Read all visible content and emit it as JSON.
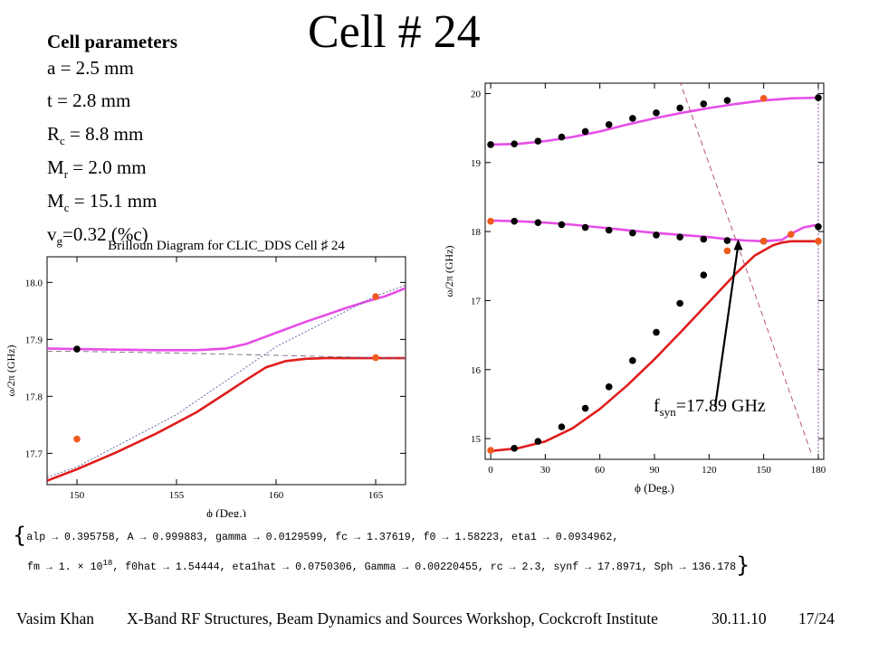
{
  "slide": {
    "title": "Cell # 24",
    "params_heading": "Cell parameters",
    "params": [
      {
        "sym": "a",
        "sub": "",
        "rest": " = 2.5 mm"
      },
      {
        "sym": "t",
        "sub": "",
        "rest": " = 2.8 mm"
      },
      {
        "sym": "R",
        "sub": "c",
        "rest": " = 8.8 mm"
      },
      {
        "sym": "M",
        "sub": "r",
        "rest": " = 2.0 mm"
      },
      {
        "sym": "M",
        "sub": "c",
        "rest": " = 15.1 mm"
      },
      {
        "sym": "v",
        "sub": "g",
        "rest": "=0.32 (%c)"
      }
    ],
    "annotation": {
      "pre": "f",
      "sub": "syn",
      "post": "=17.89 GHz"
    },
    "fit_line1": "alp → 0.395758, A → 0.999883, gamma → 0.0129599, fc → 1.37619, f0 → 1.58223, eta1 → 0.0934962,",
    "fit_line2": "fm → 1. × 10",
    "fit_line2_exp": "18",
    "fit_line2_rest": ", f0hat → 1.54444, eta1hat → 0.0750306, Gamma → 0.00220455, rc → 2.3, synf → 17.8971, Sph → 136.178",
    "brace_open": "{",
    "brace_close": "}",
    "footer": {
      "author": "Vasim Khan",
      "workshop": "X-Band RF Structures, Beam Dynamics and Sources Workshop, Cockcroft Institute",
      "date": "30.11.10",
      "page": "17/24"
    },
    "colors": {
      "magenta": "#e64ee6",
      "red": "#e01d1d",
      "orange_dot": "#f05a1e",
      "black_dot": "#000000",
      "dashed": "#7a3e8c"
    }
  },
  "chart_data": [
    {
      "type": "line",
      "title": "Brilloun Diagram for CLIC_DDS Cell ♯ 24",
      "xlabel": "ϕ (Deg.)",
      "ylabel": "ω/2π (GHz)",
      "xlim": [
        148.5,
        166.5
      ],
      "ylim": [
        17.645,
        18.045
      ],
      "xticks": [
        150,
        155,
        160,
        165
      ],
      "yticks": [
        17.7,
        17.8,
        17.9,
        18.0
      ],
      "series": [
        {
          "color": "#e64ee6",
          "style": "solid",
          "points": [
            [
              148.5,
              17.884
            ],
            [
              150,
              17.883
            ],
            [
              152,
              17.882
            ],
            [
              154,
              17.881
            ],
            [
              156,
              17.881
            ],
            [
              157.5,
              17.884
            ],
            [
              158.5,
              17.892
            ],
            [
              159.5,
              17.905
            ],
            [
              160.5,
              17.918
            ],
            [
              161.5,
              17.931
            ],
            [
              162.5,
              17.943
            ],
            [
              163.5,
              17.955
            ],
            [
              164.5,
              17.966
            ],
            [
              165.5,
              17.976
            ],
            [
              166.5,
              17.99
            ]
          ]
        },
        {
          "color": "#e01d1d",
          "style": "solid",
          "points": [
            [
              148.5,
              17.652
            ],
            [
              150,
              17.672
            ],
            [
              152,
              17.702
            ],
            [
              154,
              17.735
            ],
            [
              156,
              17.772
            ],
            [
              157.5,
              17.806
            ],
            [
              158.5,
              17.829
            ],
            [
              159.5,
              17.851
            ],
            [
              160.5,
              17.862
            ],
            [
              161.5,
              17.866
            ],
            [
              162.5,
              17.867
            ],
            [
              164,
              17.867
            ],
            [
              166.5,
              17.867
            ]
          ]
        },
        {
          "color": "#5a5aa0",
          "style": "dotted",
          "points": [
            [
              148.5,
              17.658
            ],
            [
              150,
              17.676
            ],
            [
              155,
              17.768
            ],
            [
              160,
              17.887
            ],
            [
              165,
              17.976
            ],
            [
              166.5,
              17.995
            ]
          ]
        },
        {
          "color": "#7a6a8a",
          "style": "dashed",
          "points": [
            [
              148.5,
              17.879
            ],
            [
              150,
              17.879
            ],
            [
              155,
              17.876
            ],
            [
              160,
              17.872
            ],
            [
              165,
              17.868
            ],
            [
              166.5,
              17.867
            ]
          ]
        }
      ],
      "markers": [
        {
          "x": 150,
          "y": 17.883,
          "color": "#000000"
        },
        {
          "x": 150,
          "y": 17.725,
          "color": "#f05a1e"
        },
        {
          "x": 165,
          "y": 17.975,
          "color": "#f05a1e"
        },
        {
          "x": 165,
          "y": 17.868,
          "color": "#f05a1e"
        }
      ]
    },
    {
      "type": "line",
      "xlabel": "ϕ (Deg.)",
      "ylabel": "ω/2π (GHz)",
      "xlim": [
        -3,
        183
      ],
      "ylim": [
        14.7,
        20.15
      ],
      "xticks": [
        0,
        30,
        60,
        90,
        120,
        150,
        180
      ],
      "yticks": [
        15,
        16,
        17,
        18,
        19,
        20
      ],
      "series": [
        {
          "color": "#e64ee6",
          "style": "solid",
          "points": [
            [
              0,
              19.26
            ],
            [
              15,
              19.27
            ],
            [
              30,
              19.31
            ],
            [
              45,
              19.37
            ],
            [
              60,
              19.45
            ],
            [
              75,
              19.55
            ],
            [
              90,
              19.64
            ],
            [
              105,
              19.72
            ],
            [
              120,
              19.79
            ],
            [
              135,
              19.85
            ],
            [
              150,
              19.9
            ],
            [
              165,
              19.93
            ],
            [
              180,
              19.94
            ]
          ]
        },
        {
          "color": "#e64ee6",
          "style": "solid",
          "points": [
            [
              0,
              18.16
            ],
            [
              15,
              18.15
            ],
            [
              30,
              18.13
            ],
            [
              45,
              18.1
            ],
            [
              60,
              18.06
            ],
            [
              75,
              18.02
            ],
            [
              90,
              17.98
            ],
            [
              105,
              17.95
            ],
            [
              120,
              17.92
            ],
            [
              130,
              17.89
            ],
            [
              140,
              17.87
            ],
            [
              150,
              17.86
            ],
            [
              160,
              17.88
            ],
            [
              166,
              17.98
            ],
            [
              172,
              18.06
            ],
            [
              178,
              18.09
            ],
            [
              180,
              18.08
            ]
          ]
        },
        {
          "color": "#e01d1d",
          "style": "solid",
          "points": [
            [
              0,
              14.82
            ],
            [
              15,
              14.86
            ],
            [
              30,
              14.96
            ],
            [
              45,
              15.15
            ],
            [
              60,
              15.43
            ],
            [
              75,
              15.77
            ],
            [
              90,
              16.15
            ],
            [
              105,
              16.56
            ],
            [
              120,
              16.98
            ],
            [
              135,
              17.4
            ],
            [
              145,
              17.65
            ],
            [
              155,
              17.8
            ],
            [
              160,
              17.84
            ],
            [
              165,
              17.86
            ],
            [
              170,
              17.86
            ],
            [
              180,
              17.86
            ]
          ]
        },
        {
          "color": "#b0407a",
          "style": "dashed",
          "points": [
            [
              176,
              14.8
            ],
            [
              103,
              20.25
            ]
          ]
        },
        {
          "color": "#7a3e8c",
          "style": "dotted",
          "points": [
            [
              180,
              14.8
            ],
            [
              180,
              20.25
            ]
          ]
        }
      ],
      "markers": [
        {
          "x": 0,
          "y": 19.26,
          "color": "#000000"
        },
        {
          "x": 13,
          "y": 19.27,
          "color": "#000000"
        },
        {
          "x": 26,
          "y": 19.31,
          "color": "#000000"
        },
        {
          "x": 39,
          "y": 19.37,
          "color": "#000000"
        },
        {
          "x": 52,
          "y": 19.45,
          "color": "#000000"
        },
        {
          "x": 65,
          "y": 19.55,
          "color": "#000000"
        },
        {
          "x": 78,
          "y": 19.64,
          "color": "#000000"
        },
        {
          "x": 91,
          "y": 19.72,
          "color": "#000000"
        },
        {
          "x": 104,
          "y": 19.79,
          "color": "#000000"
        },
        {
          "x": 117,
          "y": 19.85,
          "color": "#000000"
        },
        {
          "x": 130,
          "y": 19.9,
          "color": "#000000"
        },
        {
          "x": 150,
          "y": 19.93,
          "color": "#f05a1e"
        },
        {
          "x": 180,
          "y": 19.94,
          "color": "#000000"
        },
        {
          "x": 0,
          "y": 18.15,
          "color": "#f05a1e"
        },
        {
          "x": 13,
          "y": 18.15,
          "color": "#000000"
        },
        {
          "x": 26,
          "y": 18.13,
          "color": "#000000"
        },
        {
          "x": 39,
          "y": 18.1,
          "color": "#000000"
        },
        {
          "x": 52,
          "y": 18.06,
          "color": "#000000"
        },
        {
          "x": 65,
          "y": 18.02,
          "color": "#000000"
        },
        {
          "x": 78,
          "y": 17.98,
          "color": "#000000"
        },
        {
          "x": 91,
          "y": 17.95,
          "color": "#000000"
        },
        {
          "x": 104,
          "y": 17.92,
          "color": "#000000"
        },
        {
          "x": 117,
          "y": 17.89,
          "color": "#000000"
        },
        {
          "x": 130,
          "y": 17.87,
          "color": "#000000"
        },
        {
          "x": 150,
          "y": 17.86,
          "color": "#000000"
        },
        {
          "x": 165,
          "y": 17.96,
          "color": "#f05a1e"
        },
        {
          "x": 180,
          "y": 18.07,
          "color": "#000000"
        },
        {
          "x": 0,
          "y": 14.83,
          "color": "#f05a1e"
        },
        {
          "x": 13,
          "y": 14.86,
          "color": "#000000"
        },
        {
          "x": 26,
          "y": 14.96,
          "color": "#000000"
        },
        {
          "x": 39,
          "y": 15.17,
          "color": "#000000"
        },
        {
          "x": 52,
          "y": 15.44,
          "color": "#000000"
        },
        {
          "x": 65,
          "y": 15.75,
          "color": "#000000"
        },
        {
          "x": 78,
          "y": 16.13,
          "color": "#000000"
        },
        {
          "x": 91,
          "y": 16.54,
          "color": "#000000"
        },
        {
          "x": 104,
          "y": 16.96,
          "color": "#000000"
        },
        {
          "x": 117,
          "y": 17.37,
          "color": "#000000"
        },
        {
          "x": 130,
          "y": 17.72,
          "color": "#f05a1e"
        },
        {
          "x": 150,
          "y": 17.86,
          "color": "#f05a1e"
        },
        {
          "x": 180,
          "y": 17.86,
          "color": "#f05a1e"
        }
      ]
    }
  ]
}
